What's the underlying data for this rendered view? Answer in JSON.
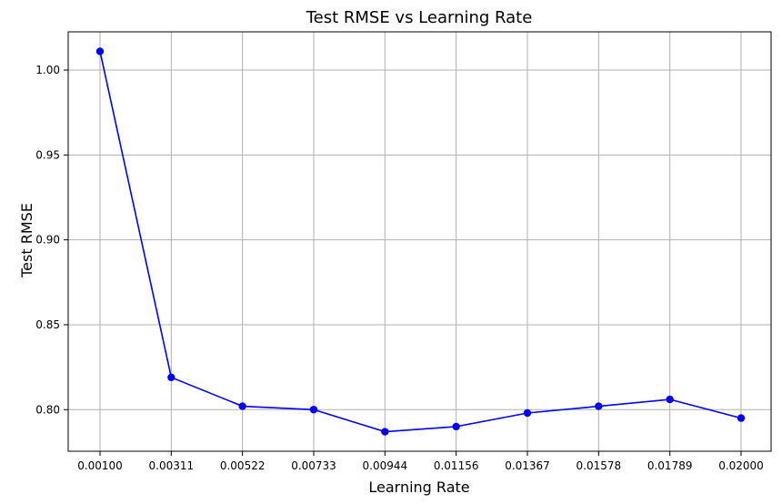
{
  "chart_data": {
    "type": "line",
    "title": "Test RMSE vs Learning Rate",
    "xlabel": "Learning Rate",
    "ylabel": "Test RMSE",
    "categories": [
      "0.00100",
      "0.00311",
      "0.00522",
      "0.00733",
      "0.00944",
      "0.01156",
      "0.01367",
      "0.01578",
      "0.01789",
      "0.02000"
    ],
    "x": [
      0.001,
      0.00311,
      0.00522,
      0.00733,
      0.00944,
      0.01156,
      0.01367,
      0.01578,
      0.01789,
      0.02
    ],
    "series": [
      {
        "values": [
          1.011,
          0.819,
          0.802,
          0.8,
          0.787,
          0.79,
          0.798,
          0.802,
          0.806,
          0.795
        ],
        "color": "#0000ff",
        "marker": "circle"
      }
    ],
    "yticks": [
      0.8,
      0.85,
      0.9,
      0.95,
      1.0
    ],
    "ytick_labels": [
      "0.80",
      "0.85",
      "0.90",
      "0.95",
      "1.00"
    ],
    "ylim": [
      0.7755,
      1.0225
    ],
    "grid": true,
    "grid_color": "#b0b0b0"
  }
}
